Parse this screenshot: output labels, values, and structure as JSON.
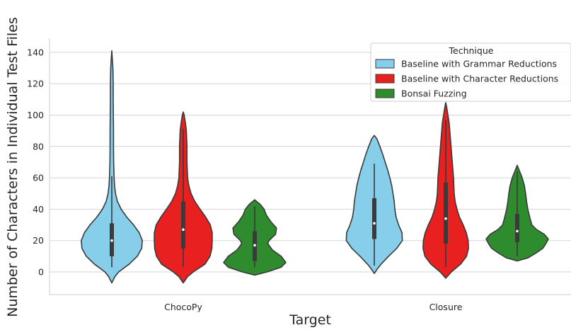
{
  "chart_data": {
    "type": "violin",
    "xlabel": "Target",
    "ylabel": "Number of Characters in Individual Test Files",
    "categories": [
      "ChocoPy",
      "Closure"
    ],
    "ylim": [
      -14,
      150
    ],
    "yticks": [
      0,
      20,
      40,
      60,
      80,
      100,
      120,
      140
    ],
    "grid": true,
    "legend": {
      "title": "Technique",
      "placement": "top-right"
    },
    "series": [
      {
        "name": "Baseline with Grammar Reductions",
        "color": "#87ceeb",
        "violins": [
          {
            "category": "ChocoPy",
            "whisker": [
              3,
              61
            ],
            "q1": 10,
            "median": 20,
            "q3": 31,
            "profile": [
              [
                -7,
                0
              ],
              [
                -3,
                0.1
              ],
              [
                0,
                0.22
              ],
              [
                5,
                0.56
              ],
              [
                10,
                0.82
              ],
              [
                15,
                0.96
              ],
              [
                20,
                0.98
              ],
              [
                25,
                0.88
              ],
              [
                30,
                0.7
              ],
              [
                35,
                0.48
              ],
              [
                40,
                0.3
              ],
              [
                45,
                0.18
              ],
              [
                50,
                0.12
              ],
              [
                55,
                0.09
              ],
              [
                60,
                0.075
              ],
              [
                70,
                0.06
              ],
              [
                80,
                0.055
              ],
              [
                90,
                0.055
              ],
              [
                100,
                0.05
              ],
              [
                110,
                0.045
              ],
              [
                120,
                0.045
              ],
              [
                130,
                0.035
              ],
              [
                135,
                0.02
              ],
              [
                141,
                0
              ]
            ]
          },
          {
            "category": "Closure",
            "whisker": [
              4,
              69
            ],
            "q1": 21,
            "median": 31,
            "q3": 47,
            "profile": [
              [
                -1,
                0
              ],
              [
                2,
                0.1
              ],
              [
                5,
                0.22
              ],
              [
                10,
                0.46
              ],
              [
                15,
                0.72
              ],
              [
                20,
                0.9
              ],
              [
                25,
                0.89
              ],
              [
                30,
                0.78
              ],
              [
                35,
                0.7
              ],
              [
                40,
                0.66
              ],
              [
                45,
                0.64
              ],
              [
                50,
                0.6
              ],
              [
                55,
                0.56
              ],
              [
                60,
                0.5
              ],
              [
                65,
                0.43
              ],
              [
                70,
                0.35
              ],
              [
                75,
                0.27
              ],
              [
                80,
                0.18
              ],
              [
                85,
                0.08
              ],
              [
                87,
                0
              ]
            ]
          }
        ]
      },
      {
        "name": "Baseline with Character Reductions",
        "color": "#e8201f",
        "violins": [
          {
            "category": "ChocoPy",
            "whisker": [
              3,
              91
            ],
            "q1": 15,
            "median": 27,
            "q3": 45,
            "profile": [
              [
                -7,
                0
              ],
              [
                -3,
                0.14
              ],
              [
                0,
                0.32
              ],
              [
                5,
                0.7
              ],
              [
                10,
                0.86
              ],
              [
                15,
                0.92
              ],
              [
                20,
                0.93
              ],
              [
                25,
                0.93
              ],
              [
                30,
                0.87
              ],
              [
                35,
                0.72
              ],
              [
                40,
                0.54
              ],
              [
                45,
                0.37
              ],
              [
                50,
                0.25
              ],
              [
                55,
                0.18
              ],
              [
                60,
                0.14
              ],
              [
                65,
                0.13
              ],
              [
                70,
                0.12
              ],
              [
                75,
                0.12
              ],
              [
                80,
                0.12
              ],
              [
                85,
                0.11
              ],
              [
                90,
                0.1
              ],
              [
                95,
                0.07
              ],
              [
                100,
                0.03
              ],
              [
                102,
                0
              ]
            ]
          },
          {
            "category": "Closure",
            "whisker": [
              3,
              97
            ],
            "q1": 18,
            "median": 34,
            "q3": 57,
            "profile": [
              [
                -4,
                0
              ],
              [
                0,
                0.18
              ],
              [
                5,
                0.48
              ],
              [
                10,
                0.67
              ],
              [
                15,
                0.73
              ],
              [
                20,
                0.72
              ],
              [
                25,
                0.66
              ],
              [
                30,
                0.56
              ],
              [
                35,
                0.44
              ],
              [
                40,
                0.36
              ],
              [
                45,
                0.3
              ],
              [
                50,
                0.27
              ],
              [
                55,
                0.26
              ],
              [
                60,
                0.25
              ],
              [
                65,
                0.23
              ],
              [
                70,
                0.21
              ],
              [
                75,
                0.19
              ],
              [
                80,
                0.17
              ],
              [
                85,
                0.15
              ],
              [
                90,
                0.13
              ],
              [
                95,
                0.11
              ],
              [
                100,
                0.07
              ],
              [
                105,
                0.03
              ],
              [
                108,
                0
              ]
            ]
          }
        ]
      },
      {
        "name": "Bonsai Fuzzing",
        "color": "#2e8b2e",
        "violins": [
          {
            "category": "ChocoPy",
            "whisker": [
              3,
              42
            ],
            "q1": 7,
            "median": 17,
            "q3": 26,
            "profile": [
              [
                -2,
                0
              ],
              [
                0,
                0.4
              ],
              [
                3,
                0.85
              ],
              [
                6,
                1.0
              ],
              [
                10,
                0.85
              ],
              [
                14,
                0.57
              ],
              [
                18,
                0.42
              ],
              [
                20,
                0.46
              ],
              [
                24,
                0.67
              ],
              [
                28,
                0.7
              ],
              [
                32,
                0.52
              ],
              [
                36,
                0.38
              ],
              [
                40,
                0.3
              ],
              [
                43,
                0.18
              ],
              [
                46,
                0
              ]
            ]
          },
          {
            "category": "Closure",
            "whisker": [
              10,
              64
            ],
            "q1": 19,
            "median": 26,
            "q3": 37,
            "profile": [
              [
                7,
                0
              ],
              [
                9,
                0.35
              ],
              [
                12,
                0.6
              ],
              [
                15,
                0.82
              ],
              [
                18,
                0.92
              ],
              [
                21,
                1.0
              ],
              [
                24,
                0.87
              ],
              [
                27,
                0.62
              ],
              [
                30,
                0.47
              ],
              [
                35,
                0.4
              ],
              [
                40,
                0.34
              ],
              [
                45,
                0.3
              ],
              [
                50,
                0.27
              ],
              [
                55,
                0.23
              ],
              [
                60,
                0.16
              ],
              [
                64,
                0.08
              ],
              [
                68,
                0
              ]
            ]
          }
        ]
      }
    ]
  }
}
